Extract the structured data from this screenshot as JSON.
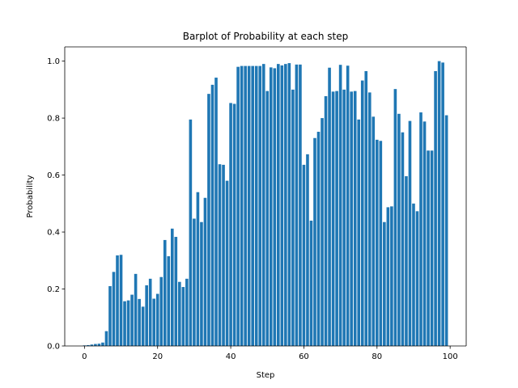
{
  "chart_data": {
    "type": "bar",
    "title": "Barplot of Probability at each step",
    "x_label": "Step",
    "y_label": "Probability",
    "color": "#1f77b4",
    "x": [
      0,
      1,
      2,
      3,
      4,
      5,
      6,
      7,
      8,
      9,
      10,
      11,
      12,
      13,
      14,
      15,
      16,
      17,
      18,
      19,
      20,
      21,
      22,
      23,
      24,
      25,
      26,
      27,
      28,
      29,
      30,
      31,
      32,
      33,
      34,
      35,
      36,
      37,
      38,
      39,
      40,
      41,
      42,
      43,
      44,
      45,
      46,
      47,
      48,
      49,
      50,
      51,
      52,
      53,
      54,
      55,
      56,
      57,
      58,
      59,
      60,
      61,
      62,
      63,
      64,
      65,
      66,
      67,
      68,
      69,
      70,
      71,
      72,
      73,
      74,
      75,
      76,
      77,
      78,
      79,
      80,
      81,
      82,
      83,
      84,
      85,
      86,
      87,
      88,
      89,
      90,
      91,
      92,
      93,
      94,
      95,
      96,
      97,
      98,
      99
    ],
    "values": [
      0.002,
      0.003,
      0.005,
      0.007,
      0.008,
      0.012,
      0.052,
      0.21,
      0.26,
      0.318,
      0.32,
      0.157,
      0.16,
      0.18,
      0.253,
      0.165,
      0.138,
      0.213,
      0.236,
      0.166,
      0.183,
      0.242,
      0.372,
      0.315,
      0.412,
      0.383,
      0.225,
      0.207,
      0.236,
      0.795,
      0.447,
      0.54,
      0.435,
      0.52,
      0.885,
      0.917,
      0.942,
      0.638,
      0.636,
      0.58,
      0.853,
      0.85,
      0.98,
      0.983,
      0.983,
      0.983,
      0.983,
      0.983,
      0.983,
      0.99,
      0.895,
      0.978,
      0.975,
      0.99,
      0.985,
      0.99,
      0.993,
      0.9,
      0.988,
      0.988,
      0.636,
      0.673,
      0.44,
      0.73,
      0.752,
      0.8,
      0.877,
      0.977,
      0.893,
      0.895,
      0.987,
      0.9,
      0.984,
      0.893,
      0.895,
      0.795,
      0.932,
      0.965,
      0.89,
      0.805,
      0.724,
      0.72,
      0.435,
      0.487,
      0.49,
      0.902,
      0.815,
      0.75,
      0.596,
      0.79,
      0.5,
      0.473,
      0.82,
      0.788,
      0.686,
      0.686,
      0.965,
      1.0,
      0.995,
      0.81
    ],
    "bar_width": 0.8,
    "xlim": [
      -5.39,
      104.39
    ],
    "xticks": [
      0,
      20,
      40,
      60,
      80,
      100
    ],
    "ylim": [
      0,
      1.05
    ],
    "yticks": [
      {
        "value": 0,
        "label": "0.0"
      },
      0.2,
      0.4,
      0.6,
      0.8,
      {
        "value": 1.0,
        "label": "1.0"
      }
    ]
  }
}
